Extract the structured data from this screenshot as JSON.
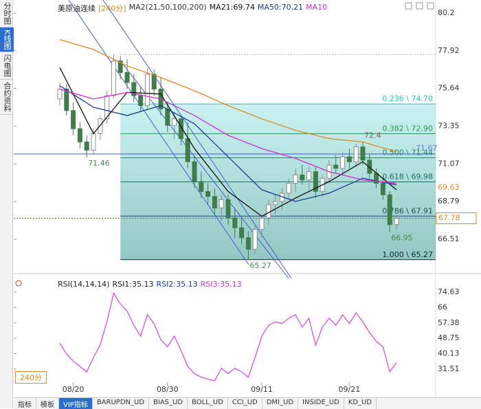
{
  "sidebar": [
    "分时图",
    "K线图",
    "闪电图",
    "合约资料"
  ],
  "chart_data": [
    {
      "type": "candlestick",
      "title": "美原油连续",
      "period": "[240分]",
      "legend": [
        {
          "label": "MA2(21,50,100,200)",
          "color": "#333333"
        },
        {
          "label": "MA21:69.74",
          "color": "#111111"
        },
        {
          "label": "MA50:70.21",
          "color": "#1a3a9a"
        },
        {
          "label": "MA10",
          "color": "#d030d0"
        }
      ],
      "categories": [
        null,
        null,
        "08/20",
        null,
        null,
        null,
        null,
        null,
        null,
        null,
        null,
        null,
        null,
        null,
        null,
        null,
        "08/30",
        null,
        null,
        null,
        null,
        null,
        null,
        null,
        null,
        null,
        null,
        null,
        null,
        null,
        "09/11",
        null,
        null,
        null,
        null,
        null,
        null,
        null,
        null,
        null,
        null,
        null,
        null,
        "09/21",
        null,
        null,
        null,
        null,
        null,
        null,
        null
      ],
      "open": [
        75.0,
        75.6,
        74.3,
        73.2,
        72.4,
        71.9,
        72.9,
        73.8,
        75.2,
        77.3,
        76.6,
        76.0,
        75.2,
        74.6,
        76.5,
        75.6,
        74.4,
        73.4,
        73.8,
        72.6,
        71.2,
        70.0,
        69.4,
        69.1,
        68.4,
        68.9,
        67.8,
        67.2,
        66.6,
        65.9,
        67.1,
        67.8,
        68.6,
        68.8,
        69.3,
        69.9,
        70.4,
        70.1,
        70.6,
        69.4,
        70.2,
        71.0,
        70.8,
        71.5,
        71.2,
        72.1,
        71.3,
        70.5,
        69.9,
        69.2,
        67.4
      ],
      "high": [
        76.0,
        75.9,
        74.8,
        73.6,
        72.8,
        73.2,
        74.0,
        75.5,
        77.7,
        77.6,
        77.4,
        76.5,
        75.7,
        76.9,
        76.8,
        76.3,
        74.8,
        74.2,
        74.0,
        73.6,
        71.6,
        70.6,
        69.9,
        69.6,
        69.2,
        69.2,
        68.4,
        67.8,
        67.0,
        67.4,
        68.0,
        68.9,
        69.2,
        69.6,
        70.2,
        70.8,
        71.0,
        70.9,
        70.9,
        70.4,
        71.3,
        71.6,
        71.8,
        72.0,
        72.3,
        72.4,
        71.7,
        70.8,
        70.3,
        69.4,
        68.0
      ],
      "low": [
        74.6,
        74.0,
        72.8,
        72.0,
        71.46,
        71.6,
        72.5,
        73.5,
        75.0,
        76.2,
        75.6,
        74.8,
        74.2,
        74.4,
        75.2,
        74.0,
        73.0,
        72.6,
        72.2,
        70.8,
        69.6,
        69.0,
        68.6,
        68.0,
        67.6,
        67.4,
        66.6,
        66.2,
        65.27,
        65.6,
        66.6,
        67.4,
        68.0,
        68.3,
        68.9,
        69.4,
        69.8,
        69.5,
        69.0,
        69.1,
        69.9,
        70.5,
        70.4,
        70.8,
        70.9,
        71.0,
        70.2,
        69.6,
        68.9,
        66.95,
        67.1
      ],
      "close": [
        75.6,
        74.3,
        73.2,
        72.4,
        71.9,
        72.9,
        73.8,
        75.2,
        77.3,
        76.6,
        76.0,
        75.2,
        74.6,
        76.5,
        75.6,
        74.4,
        73.4,
        73.8,
        72.6,
        71.2,
        70.0,
        69.4,
        69.1,
        68.4,
        68.9,
        67.8,
        67.2,
        66.6,
        65.9,
        67.1,
        67.8,
        68.6,
        68.8,
        69.3,
        69.9,
        70.4,
        70.1,
        70.6,
        69.4,
        70.2,
        71.0,
        70.8,
        71.5,
        71.2,
        72.1,
        71.3,
        70.5,
        69.9,
        69.2,
        67.4,
        67.78
      ],
      "up_color": "#8c8c8c",
      "down_color": "#3f7d4a",
      "lines": [
        {
          "color": "#111111",
          "x": [
            0,
            5,
            10,
            15,
            20,
            25,
            30,
            35,
            40,
            45,
            50
          ],
          "values": [
            76.9,
            72.9,
            75.4,
            75.3,
            72.0,
            69.4,
            67.9,
            69.0,
            70.0,
            71.2,
            69.5
          ]
        },
        {
          "color": "#1a3a9a",
          "x": [
            0,
            5,
            10,
            15,
            20,
            25,
            30,
            35,
            40,
            45,
            50
          ],
          "values": [
            75.8,
            74.5,
            74.0,
            74.6,
            73.5,
            71.5,
            69.5,
            68.8,
            69.3,
            70.2,
            69.8
          ]
        },
        {
          "color": "#d030d0",
          "x": [
            0,
            5,
            10,
            15,
            20,
            25,
            30,
            35,
            40,
            45,
            50
          ],
          "values": [
            75.6,
            75.0,
            75.4,
            75.0,
            74.0,
            72.8,
            72.0,
            71.4,
            70.6,
            70.1,
            69.9
          ]
        },
        {
          "color": "#e08a20",
          "x": [
            0,
            5,
            10,
            15,
            20,
            25,
            30,
            35,
            40,
            45,
            50
          ],
          "values": [
            78.6,
            78.0,
            77.0,
            76.3,
            75.5,
            74.6,
            73.8,
            73.1,
            72.6,
            72.4,
            71.8
          ]
        }
      ],
      "fib_levels": [
        {
          "value": 74.7,
          "label": "0.236 \\ 74.70"
        },
        {
          "value": 72.9,
          "label": "0.382 \\ 72.90"
        },
        {
          "value": 71.44,
          "label": "0.500 \\ 71.44"
        },
        {
          "value": 69.98,
          "label": "0.618 \\ 69.98"
        },
        {
          "value": 67.91,
          "label": "0.786 \\ 67.91"
        },
        {
          "value": 65.27,
          "label": "1.000 \\ 65.27"
        }
      ],
      "point_labels": [
        71.46,
        72.4,
        65.27,
        66.95
      ],
      "trend_level": 71.67,
      "marker_price": 69.63,
      "last_price": 67.78,
      "ylim": [
        64.97,
        80.66
      ],
      "yticks": [
        80.2,
        77.92,
        75.64,
        73.35,
        71.07,
        68.79,
        66.51
      ]
    },
    {
      "type": "line",
      "title": "RSI(14,14,14)",
      "legend": [
        {
          "label": "RSI1:35.13",
          "color": "#222222"
        },
        {
          "label": "RSI2:35.13",
          "color": "#1a3a9a"
        },
        {
          "label": "RSI3:35.13",
          "color": "#d030d0"
        }
      ],
      "series": [
        {
          "color": "#e040e0",
          "values": [
            46,
            40,
            36,
            33,
            30,
            38,
            45,
            58,
            74,
            68,
            64,
            56,
            50,
            62,
            57,
            48,
            44,
            50,
            42,
            33,
            29,
            27,
            26,
            25,
            32,
            29,
            32,
            30,
            27,
            38,
            50,
            56,
            58,
            57,
            60,
            62,
            55,
            60,
            45,
            55,
            60,
            56,
            62,
            57,
            63,
            58,
            52,
            47,
            44,
            30,
            35.13
          ]
        }
      ],
      "ylim": [
        22.65,
        82.3
      ],
      "yticks": [
        74.63,
        66.0,
        57.38,
        48.75,
        40.13,
        31.51
      ]
    }
  ],
  "period_button": "240分",
  "tabs": [
    "指标",
    "模板",
    "VIP指标",
    "BARUPDN_UD",
    "BIAS_UD",
    "BOLL_UD",
    "CCI_UD",
    "DMI_UD",
    "INSIDE_UD",
    "KD_UD"
  ]
}
